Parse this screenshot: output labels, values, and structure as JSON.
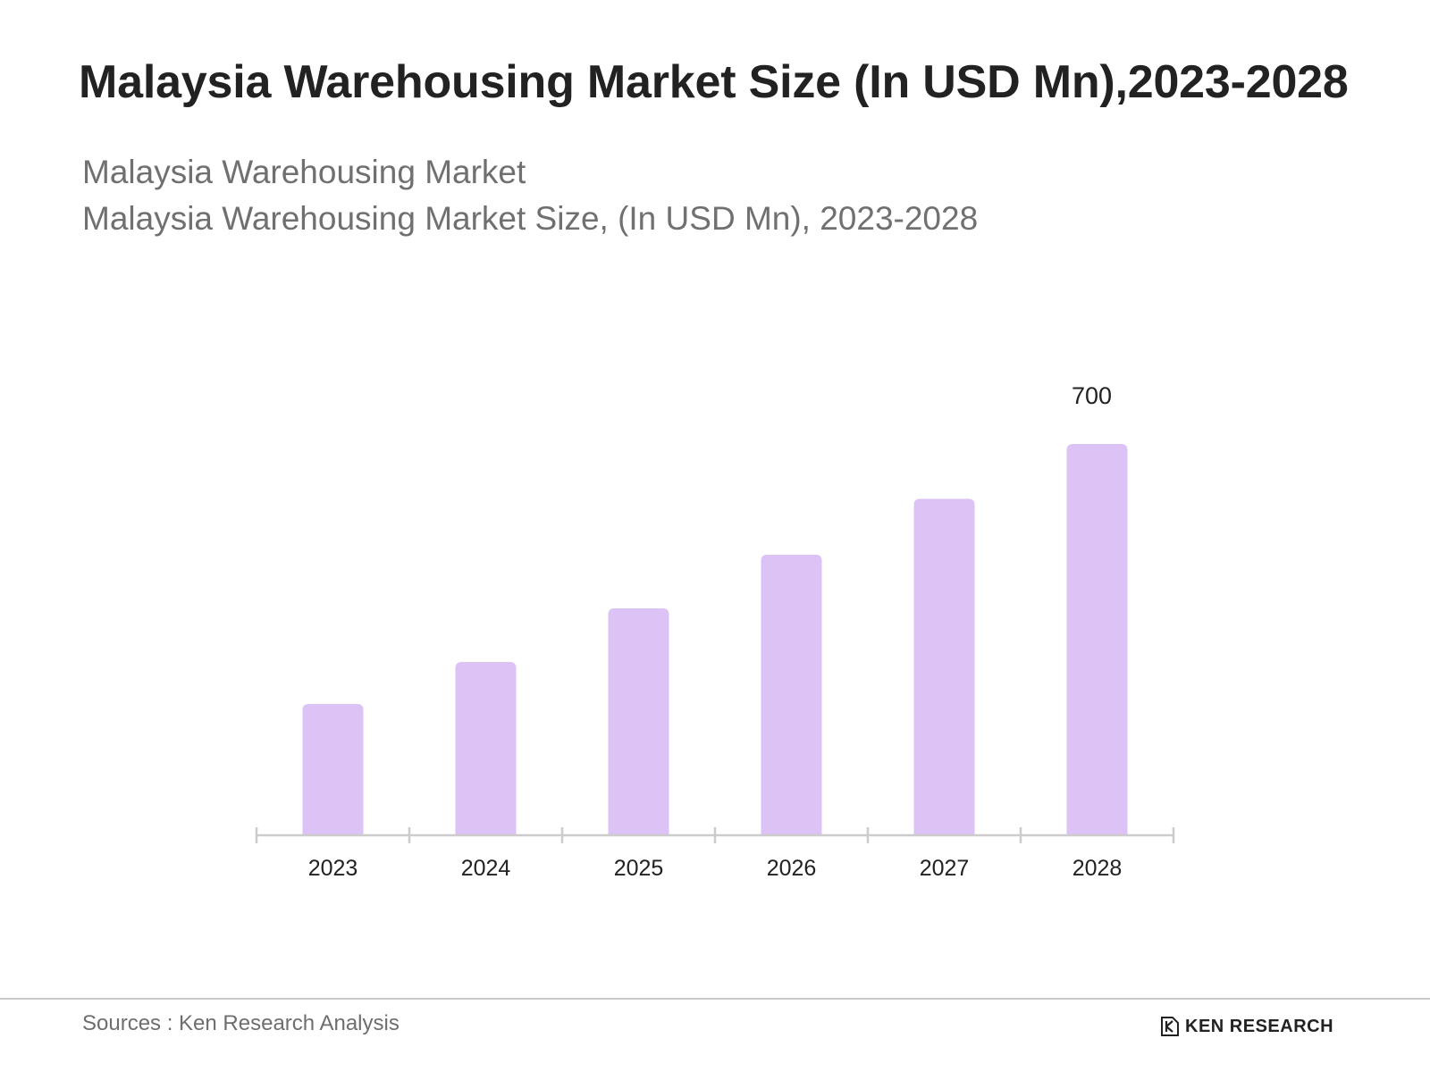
{
  "header": {
    "title": "Malaysia Warehousing Market Size (In USD Mn),2023-2028",
    "subtitle_line1": "Malaysia Warehousing Market",
    "subtitle_line2": "Malaysia Warehousing Market Size, (In USD Mn), 2023-2028"
  },
  "chart_data": {
    "type": "bar",
    "title": "Malaysia Warehousing Market Size (In USD Mn),2023-2028",
    "categories": [
      "2023",
      "2024",
      "2025",
      "2026",
      "2027",
      "2028"
    ],
    "values": [
      235,
      310,
      406,
      502,
      602,
      700
    ],
    "data_labels": [
      "",
      "",
      "",
      "",
      "",
      "700"
    ],
    "xlabel": "",
    "ylabel": "",
    "ylim": [
      0,
      700
    ],
    "grid": false,
    "legend": "none",
    "bar_color": "#dcc2f5",
    "axis_color": "#cccccc"
  },
  "footer": {
    "source": "Sources : Ken Research Analysis",
    "brand": "KEN RESEARCH",
    "brand_icon": "ken-research-logo-icon"
  }
}
